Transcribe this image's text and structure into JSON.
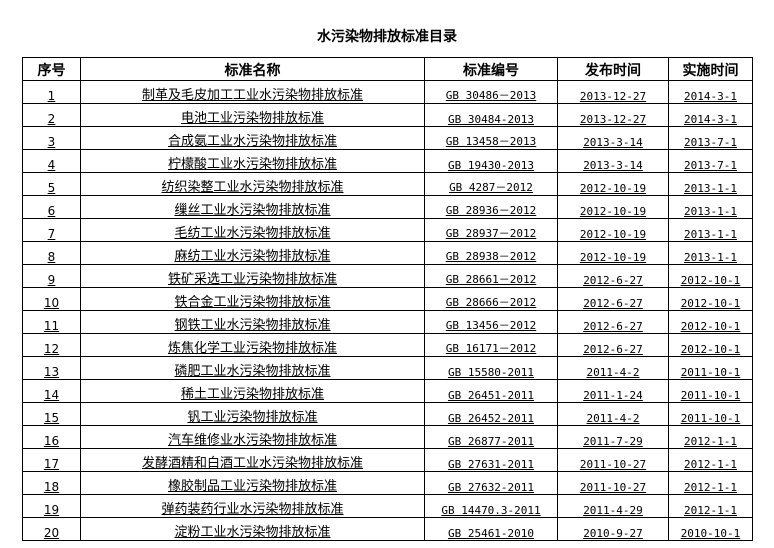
{
  "title": "水污染物排放标准目录",
  "headers": [
    "序号",
    "标准名称",
    "标准编号",
    "发布时间",
    "实施时间"
  ],
  "rows": [
    [
      "1",
      "制革及毛皮加工工业水污染物排放标准",
      "GB 30486－2013",
      "2013-12-27",
      "2014-3-1"
    ],
    [
      "2",
      "电池工业污染物排放标准",
      "GB 30484-2013",
      "2013-12-27",
      "2014-3-1"
    ],
    [
      "3",
      "合成氨工业水污染物排放标准",
      "GB 13458－2013",
      "2013-3-14",
      "2013-7-1"
    ],
    [
      "4",
      "柠檬酸工业水污染物排放标准",
      "GB 19430-2013",
      "2013-3-14",
      "2013-7-1"
    ],
    [
      "5",
      "纺织染整工业水污染物排放标准",
      "GB 4287－2012",
      "2012-10-19",
      "2013-1-1"
    ],
    [
      "6",
      "缫丝工业水污染物排放标准",
      "GB 28936－2012",
      "2012-10-19",
      "2013-1-1"
    ],
    [
      "7",
      "毛纺工业水污染物排放标准",
      "GB 28937－2012",
      "2012-10-19",
      "2013-1-1"
    ],
    [
      "8",
      "麻纺工业水污染物排放标准",
      "GB 28938－2012",
      "2012-10-19",
      "2013-1-1"
    ],
    [
      "9",
      "铁矿采选工业污染物排放标准",
      "GB 28661－2012",
      "2012-6-27",
      "2012-10-1"
    ],
    [
      "10",
      "铁合金工业污染物排放标准",
      "GB 28666－2012",
      "2012-6-27",
      "2012-10-1"
    ],
    [
      "11",
      "钢铁工业水污染物排放标准",
      "GB 13456－2012",
      "2012-6-27",
      "2012-10-1"
    ],
    [
      "12",
      "炼焦化学工业污染物排放标准",
      "GB 16171－2012",
      "2012-6-27",
      "2012-10-1"
    ],
    [
      "13",
      "磷肥工业水污染物排放标准",
      "GB 15580-2011",
      "2011-4-2",
      "2011-10-1"
    ],
    [
      "14",
      "稀土工业污染物排放标准",
      "GB 26451-2011",
      "2011-1-24",
      "2011-10-1"
    ],
    [
      "15",
      "钒工业污染物排放标准",
      "GB 26452-2011",
      "2011-4-2",
      "2011-10-1"
    ],
    [
      "16",
      "汽车维修业水污染物排放标准",
      "GB 26877-2011",
      "2011-7-29",
      "2012-1-1"
    ],
    [
      "17",
      "发酵酒精和白酒工业水污染物排放标准",
      "GB 27631-2011",
      "2011-10-27",
      "2012-1-1"
    ],
    [
      "18",
      "橡胶制品工业污染物排放标准",
      "GB 27632-2011",
      "2011-10-27",
      "2012-1-1"
    ],
    [
      "19",
      "弹药装药行业水污染物排放标准",
      "GB 14470.3-2011",
      "2011-4-29",
      "2012-1-1"
    ],
    [
      "20",
      "淀粉工业水污染物排放标准",
      "GB 25461-2010",
      "2010-9-27",
      "2010-10-1"
    ]
  ]
}
